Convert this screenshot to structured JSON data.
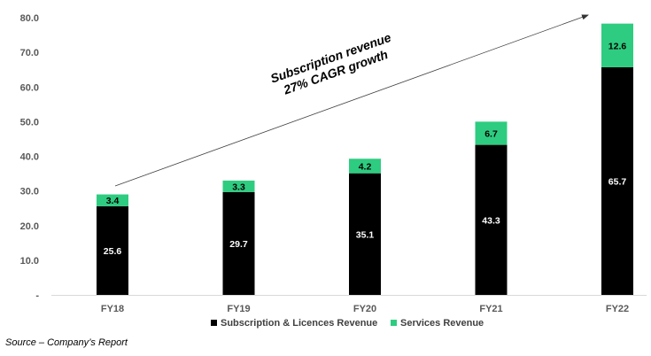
{
  "chart_data": {
    "type": "bar",
    "stacked": true,
    "categories": [
      "FY18",
      "FY19",
      "FY20",
      "FY21",
      "FY22"
    ],
    "series": [
      {
        "name": "Subscription & Licences Revenue",
        "color": "#000000",
        "label_color": "#ffffff",
        "values": [
          25.6,
          29.7,
          35.1,
          43.3,
          65.7
        ]
      },
      {
        "name": "Services Revenue",
        "color": "#2ecc80",
        "label_color": "#000000",
        "values": [
          3.4,
          3.3,
          4.2,
          6.7,
          12.6
        ]
      }
    ],
    "ylim": [
      0,
      80
    ],
    "yticks": [
      "-",
      "10.0",
      "20.0",
      "30.0",
      "40.0",
      "50.0",
      "60.0",
      "70.0",
      "80.0"
    ],
    "legend_position": "bottom",
    "annotation": {
      "line1": "Subscription revenue",
      "line2": "27% CAGR growth"
    },
    "title": "",
    "xlabel": "",
    "ylabel": ""
  },
  "source": "Source – Company’s Report"
}
